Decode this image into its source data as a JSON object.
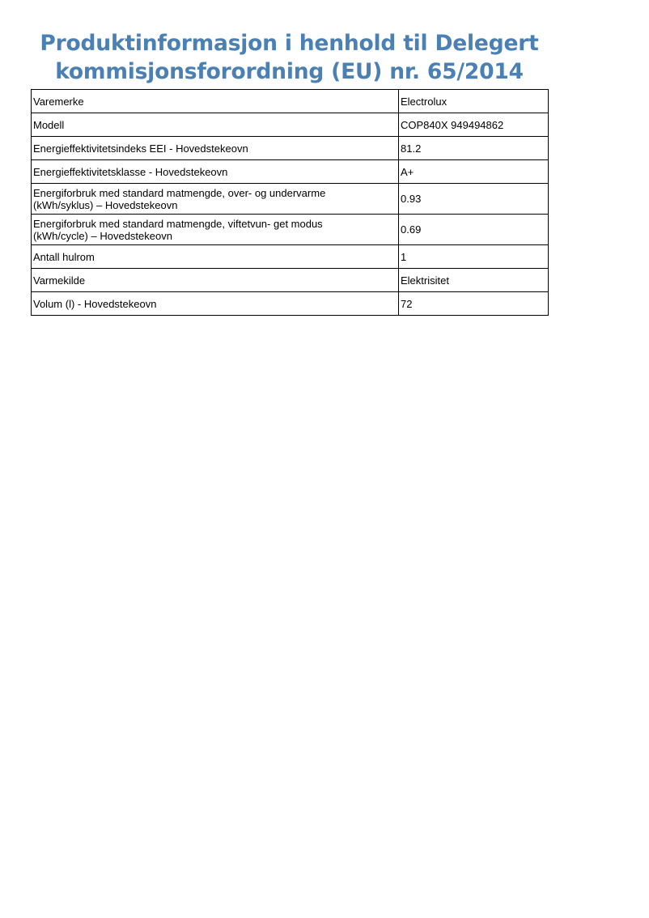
{
  "title": {
    "line1": "Produktinformasjon i henhold til Delegert",
    "line2": "kommisjonsforordning (EU) nr.  65/2014",
    "color": "#4a80b4"
  },
  "table": {
    "rows": [
      {
        "label": "Varemerke",
        "value": "Electrolux"
      },
      {
        "label": "Modell",
        "value": "COP840X 949494862"
      },
      {
        "label": "Energieffektivitetsindeks EEI - Hovedstekeovn",
        "value": "81.2"
      },
      {
        "label": "Energieffektivitetsklasse - Hovedstekeovn",
        "value": "A+"
      },
      {
        "label": "Energiforbruk med standard matmengde, over- og undervarme",
        "label2": "(kWh/syklus) – Hovedstekeovn",
        "value": "0.93"
      },
      {
        "label": "Energiforbruk med standard matmengde, viftetvun- get modus",
        "label2": "(kWh/cycle) – Hovedstekeovn",
        "value": "0.69"
      },
      {
        "label": "Antall hulrom",
        "value": "1"
      },
      {
        "label": "Varmekilde",
        "value": "Elektrisitet"
      },
      {
        "label": "Volum (l) - Hovedstekeovn",
        "value": "72"
      }
    ]
  }
}
